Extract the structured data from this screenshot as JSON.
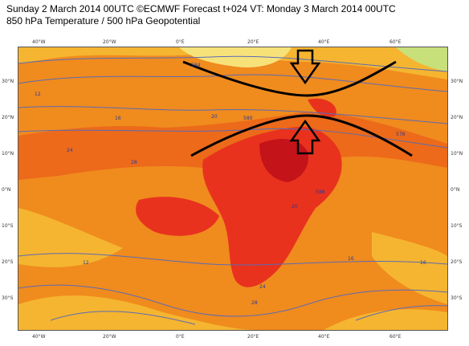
{
  "header": {
    "line1": "Sunday 2 March 2014 00UTC ©ECMWF Forecast t+024 VT: Monday 3 March 2014 00UTC",
    "line2": "850 hPa Temperature / 500 hPa Geopotential"
  },
  "axes": {
    "lon_ticks": [
      "40°W",
      "20°W",
      "0°E",
      "20°E",
      "40°E",
      "60°E"
    ],
    "lat_ticks": [
      "30°N",
      "20°N",
      "10°N",
      "0°N",
      "10°S",
      "20°S",
      "30°S"
    ]
  },
  "contour_labels": [
    "584",
    "12",
    "16",
    "20",
    "24",
    "28",
    "580",
    "576",
    "588",
    "12",
    "16",
    "20",
    "24",
    "28",
    "16"
  ],
  "colors": {
    "light_yellow": "#f7d04a",
    "yellow": "#f5b530",
    "orange": "#f08b1e",
    "dark_orange": "#ec6a1a",
    "red": "#e8321e",
    "dark_red": "#c4141a",
    "contour": "#5c6bb3",
    "annotation": "#000000"
  }
}
